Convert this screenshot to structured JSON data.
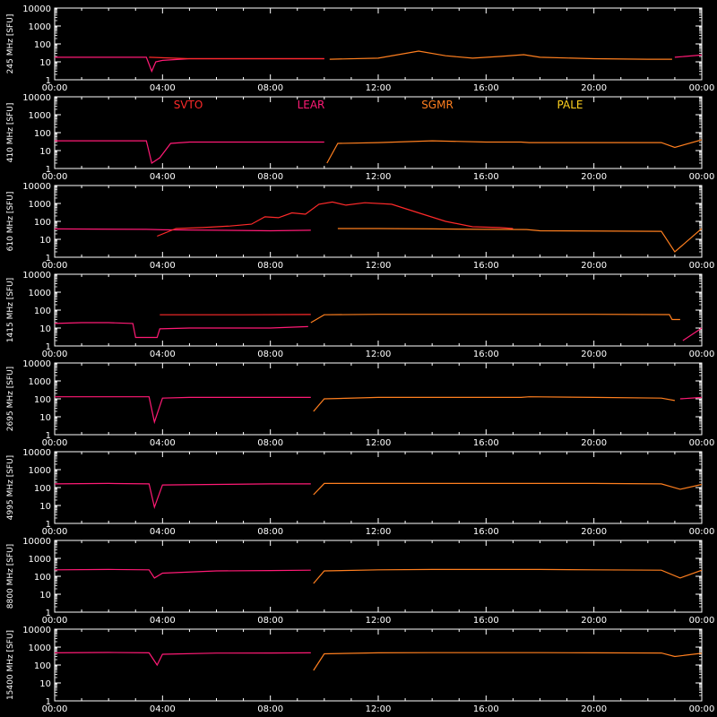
{
  "chart_data": {
    "type": "line",
    "background": "#000000",
    "axis_color": "#ffffff",
    "x_tick_labels": [
      "00:00",
      "04:00",
      "08:00",
      "12:00",
      "16:00",
      "20:00",
      "00:00"
    ],
    "x_range_hours": [
      0,
      24
    ],
    "y_scale": "log",
    "y_range": [
      1,
      10000
    ],
    "y_tick_labels": [
      "1",
      "10",
      "100",
      "1000",
      "10000"
    ],
    "grid": false,
    "station_legend": [
      {
        "name": "SVTO",
        "color": "#ff2a2a",
        "panel": 1
      },
      {
        "name": "LEAR",
        "color": "#ff1a75",
        "panel": 1
      },
      {
        "name": "SGMR",
        "color": "#ff7f1f",
        "panel": 1
      },
      {
        "name": "PALE",
        "color": "#ffd21f",
        "panel": 1
      }
    ],
    "panels": [
      {
        "label": "245 MHz [SFU]",
        "series": [
          {
            "station": "LEAR",
            "color": "#ff1a75",
            "x": [
              0,
              2,
              3.4,
              3.6,
              3.75,
              4,
              5,
              8,
              9.5,
              10
            ],
            "y": [
              18,
              18,
              18,
              3,
              10,
              12,
              15,
              15,
              15,
              15
            ]
          },
          {
            "station": "SVTO",
            "color": "#ff2a2a",
            "x": [
              3.5,
              5,
              8,
              9.5,
              10
            ],
            "y": [
              18,
              15,
              15,
              15,
              15
            ]
          },
          {
            "station": "SGMR",
            "color": "#ff7f1f",
            "x": [
              10.2,
              12,
              13.5,
              14.5,
              15.5,
              16.5,
              17.4,
              18,
              20,
              22,
              22.9
            ],
            "y": [
              14,
              16,
              40,
              22,
              16,
              20,
              25,
              18,
              15,
              14,
              14
            ]
          },
          {
            "station": "LEAR",
            "color": "#ff1a75",
            "x": [
              23,
              24
            ],
            "y": [
              18,
              24
            ]
          }
        ]
      },
      {
        "label": "410 MHz [SFU]",
        "series": [
          {
            "station": "LEAR",
            "color": "#ff1a75",
            "x": [
              0,
              3.4,
              3.6,
              3.9,
              4.3,
              5,
              9.5,
              10
            ],
            "y": [
              35,
              35,
              2,
              4,
              25,
              30,
              30,
              30
            ]
          },
          {
            "station": "SGMR",
            "color": "#ff7f1f",
            "x": [
              10.1,
              10.5,
              12,
              14,
              16,
              17.3,
              17.6,
              22.5,
              23,
              24
            ],
            "y": [
              2,
              25,
              28,
              35,
              30,
              30,
              28,
              28,
              15,
              40
            ]
          }
        ]
      },
      {
        "label": "610 MHz [SFU]",
        "series": [
          {
            "station": "LEAR",
            "color": "#ff1a75",
            "x": [
              0,
              3.4,
              4,
              6,
              8,
              9.5
            ],
            "y": [
              38,
              36,
              34,
              32,
              30,
              32
            ]
          },
          {
            "station": "SVTO",
            "color": "#ff2a2a",
            "x": [
              3.8,
              4.5,
              5.5,
              6.5,
              7.3,
              7.8,
              8.3,
              8.8,
              9.3,
              9.8,
              10.3,
              10.8,
              11.5,
              12.5,
              13.5,
              14.5,
              15.5,
              16.5,
              17
            ],
            "y": [
              15,
              40,
              45,
              55,
              70,
              180,
              160,
              300,
              250,
              900,
              1200,
              800,
              1100,
              900,
              300,
              100,
              50,
              45,
              40
            ]
          },
          {
            "station": "SGMR",
            "color": "#ff7f1f",
            "x": [
              10.5,
              12,
              14,
              16,
              17.5,
              18,
              22.5,
              23,
              24
            ],
            "y": [
              40,
              40,
              38,
              36,
              35,
              30,
              28,
              2,
              40
            ]
          }
        ]
      },
      {
        "label": "1415 MHz [SFU]",
        "series": [
          {
            "station": "LEAR",
            "color": "#ff1a75",
            "x": [
              0,
              1,
              2,
              2.9,
              3,
              3.8,
              3.9,
              5,
              8,
              9.4
            ],
            "y": [
              18,
              20,
              20,
              18,
              3,
              3,
              9,
              10,
              10,
              12
            ]
          },
          {
            "station": "SVTO",
            "color": "#ff2a2a",
            "x": [
              3.9,
              5,
              7,
              9.5
            ],
            "y": [
              55,
              55,
              55,
              57
            ]
          },
          {
            "station": "SGMR",
            "color": "#ff7f1f",
            "x": [
              9.5,
              10,
              12,
              14,
              16,
              18,
              20,
              22.8,
              22.9,
              23.2
            ],
            "y": [
              20,
              55,
              58,
              58,
              58,
              58,
              58,
              56,
              30,
              30
            ]
          },
          {
            "station": "LEAR",
            "color": "#ff1a75",
            "x": [
              23.3,
              24
            ],
            "y": [
              2,
              10
            ]
          }
        ]
      },
      {
        "label": "2695 MHz [SFU]",
        "series": [
          {
            "station": "LEAR",
            "color": "#ff1a75",
            "x": [
              0,
              2,
              3.5,
              3.7,
              4,
              5,
              8,
              9.5
            ],
            "y": [
              130,
              130,
              130,
              5,
              110,
              120,
              120,
              120
            ]
          },
          {
            "station": "SGMR",
            "color": "#ff7f1f",
            "x": [
              9.6,
              10,
              12,
              14,
              16,
              17.3,
              17.6,
              20,
              22.5,
              23
            ],
            "y": [
              20,
              100,
              120,
              120,
              120,
              120,
              130,
              120,
              110,
              80
            ]
          },
          {
            "station": "LEAR",
            "color": "#ff1a75",
            "x": [
              23.2,
              24
            ],
            "y": [
              100,
              120
            ]
          }
        ]
      },
      {
        "label": "4995 MHz [SFU]",
        "series": [
          {
            "station": "LEAR",
            "color": "#ff1a75",
            "x": [
              0,
              2,
              3.5,
              3.7,
              4,
              6,
              8,
              9.5
            ],
            "y": [
              160,
              170,
              160,
              8,
              140,
              150,
              160,
              160
            ]
          },
          {
            "station": "SGMR",
            "color": "#ff7f1f",
            "x": [
              9.6,
              10,
              12,
              14,
              16,
              18,
              20,
              22.5,
              23.2,
              24
            ],
            "y": [
              40,
              170,
              170,
              170,
              170,
              170,
              170,
              160,
              80,
              150
            ]
          }
        ]
      },
      {
        "label": "8800 MHz [SFU]",
        "series": [
          {
            "station": "LEAR",
            "color": "#ff1a75",
            "x": [
              0,
              2,
              3.5,
              3.7,
              4,
              6,
              8,
              9.5
            ],
            "y": [
              230,
              240,
              230,
              80,
              150,
              200,
              210,
              220
            ]
          },
          {
            "station": "SGMR",
            "color": "#ff7f1f",
            "x": [
              9.6,
              10,
              12,
              14,
              16,
              18,
              20,
              22.5,
              23.2,
              24
            ],
            "y": [
              40,
              200,
              230,
              240,
              240,
              240,
              230,
              220,
              80,
              220
            ]
          }
        ]
      },
      {
        "label": "15400 MHz [SFU]",
        "series": [
          {
            "station": "LEAR",
            "color": "#ff1a75",
            "x": [
              0,
              2,
              3.5,
              3.8,
              4,
              6,
              8,
              9.5
            ],
            "y": [
              480,
              500,
              480,
              100,
              400,
              460,
              470,
              480
            ]
          },
          {
            "station": "SGMR",
            "color": "#ff7f1f",
            "x": [
              9.6,
              10,
              12,
              14,
              16,
              18,
              20,
              22.5,
              23,
              24
            ],
            "y": [
              50,
              420,
              480,
              490,
              490,
              490,
              480,
              470,
              300,
              450
            ]
          }
        ]
      }
    ]
  }
}
